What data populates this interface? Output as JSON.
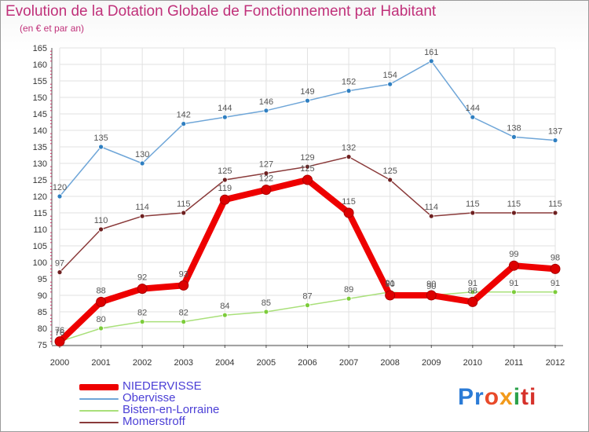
{
  "chart_data": {
    "type": "line",
    "title": "Evolution de la Dotation Globale de Fonctionnement par Habitant",
    "subtitle": "(en € et par an)",
    "x": [
      2000,
      2001,
      2002,
      2003,
      2004,
      2005,
      2006,
      2007,
      2008,
      2009,
      2010,
      2011,
      2012
    ],
    "ylim": [
      75,
      165
    ],
    "yticks": [
      75,
      80,
      85,
      90,
      95,
      100,
      105,
      110,
      115,
      120,
      125,
      130,
      135,
      140,
      145,
      150,
      155,
      160,
      165
    ],
    "grid": true,
    "series": [
      {
        "name": "NIEDERVISSE",
        "color": "#ee0000",
        "marker": "#dd0000",
        "emphasis": true,
        "values": [
          76,
          88,
          92,
          93,
          119,
          122,
          125,
          115,
          90,
          90,
          88,
          99,
          98
        ]
      },
      {
        "name": "Obervisse",
        "color": "#6fa6d8",
        "marker": "#2f7fc1",
        "emphasis": false,
        "values": [
          120,
          135,
          130,
          142,
          144,
          146,
          149,
          152,
          154,
          161,
          144,
          138,
          137
        ]
      },
      {
        "name": "Bisten-en-Lorraine",
        "color": "#a9e07a",
        "marker": "#7ccc3a",
        "emphasis": false,
        "values": [
          76,
          80,
          82,
          82,
          84,
          85,
          87,
          89,
          91,
          90,
          91,
          91,
          91
        ]
      },
      {
        "name": "Momerstroff",
        "color": "#8a3a3a",
        "marker": "#6e2020",
        "emphasis": false,
        "values": [
          97,
          110,
          114,
          115,
          125,
          127,
          129,
          132,
          125,
          114,
          115,
          115,
          115
        ]
      }
    ]
  },
  "logo": {
    "p": "Pr",
    "o": "o",
    "x": "x",
    "i": "i",
    "ti": "ti"
  }
}
